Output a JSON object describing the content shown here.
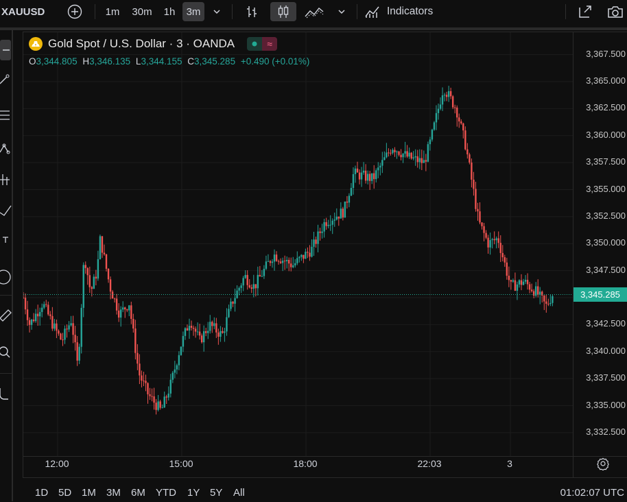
{
  "toolbar": {
    "symbol": "XAUUSD",
    "intervals": [
      "1m",
      "30m",
      "1h",
      "3m"
    ],
    "active_interval": "3m",
    "indicators_label": "Indicators"
  },
  "legend": {
    "title": "Gold Spot / U.S. Dollar · 3 · OANDA",
    "o_key": "O",
    "o_val": "3,344.805",
    "h_key": "H",
    "h_val": "3,346.135",
    "l_key": "L",
    "l_val": "3,344.155",
    "c_key": "C",
    "c_val": "3,345.285",
    "change": "+0.490 (+0.01%)",
    "pill_symbol": "≈"
  },
  "price_scale": {
    "ticks": [
      "3,367.500",
      "3,365.000",
      "3,362.500",
      "3,360.000",
      "3,357.500",
      "3,355.000",
      "3,352.500",
      "3,350.000",
      "3,347.500",
      "3,345.000",
      "3,342.500",
      "3,340.000",
      "3,337.500",
      "3,335.000",
      "3,332.500"
    ],
    "last_price": "3,345.285"
  },
  "time_axis": {
    "ticks": [
      "12:00",
      "15:00",
      "18:00",
      "22:03",
      "3"
    ]
  },
  "bottom_bar": {
    "ranges": [
      "1D",
      "5D",
      "1M",
      "3M",
      "6M",
      "YTD",
      "1Y",
      "5Y",
      "All"
    ],
    "clock": "01:02:07 UTC"
  },
  "colors": {
    "up": "#26a69a",
    "down": "#ef5350",
    "background": "#0f0f0f",
    "grid": "#1c1c1c",
    "last_price": "#22ab94"
  },
  "chart_data": {
    "type": "candlestick",
    "title": "Gold Spot / U.S. Dollar · 3 · OANDA",
    "ylim": [
      3331.5,
      3369
    ],
    "y_ticks": [
      3367.5,
      3365,
      3362.5,
      3360,
      3357.5,
      3355,
      3352.5,
      3350,
      3347.5,
      3345,
      3342.5,
      3340,
      3337.5,
      3335,
      3332.5
    ],
    "x_ticks": [
      "12:00",
      "15:00",
      "18:00",
      "22:03",
      "3"
    ],
    "last_close": 3345.285,
    "anchors": [
      [
        0.0,
        3345.0
      ],
      [
        0.01,
        3342.5
      ],
      [
        0.03,
        3344.5
      ],
      [
        0.05,
        3342.0
      ],
      [
        0.06,
        3341.0
      ],
      [
        0.075,
        3343.0
      ],
      [
        0.085,
        3338.5
      ],
      [
        0.095,
        3349.0
      ],
      [
        0.105,
        3345.5
      ],
      [
        0.115,
        3347.5
      ],
      [
        0.12,
        3350.5
      ],
      [
        0.135,
        3346.0
      ],
      [
        0.15,
        3343.5
      ],
      [
        0.165,
        3344.5
      ],
      [
        0.18,
        3338.0
      ],
      [
        0.195,
        3336.0
      ],
      [
        0.215,
        3334.5
      ],
      [
        0.23,
        3337.0
      ],
      [
        0.245,
        3340.5
      ],
      [
        0.26,
        3343.0
      ],
      [
        0.275,
        3341.0
      ],
      [
        0.29,
        3342.5
      ],
      [
        0.31,
        3341.5
      ],
      [
        0.325,
        3344.5
      ],
      [
        0.345,
        3347.0
      ],
      [
        0.36,
        3346.0
      ],
      [
        0.39,
        3349.0
      ],
      [
        0.42,
        3348.0
      ],
      [
        0.45,
        3349.5
      ],
      [
        0.47,
        3352.0
      ],
      [
        0.5,
        3353.0
      ],
      [
        0.515,
        3356.5
      ],
      [
        0.545,
        3356.0
      ],
      [
        0.575,
        3359.0
      ],
      [
        0.6,
        3358.0
      ],
      [
        0.625,
        3357.5
      ],
      [
        0.635,
        3359.5
      ],
      [
        0.655,
        3364.5
      ],
      [
        0.675,
        3362.5
      ],
      [
        0.69,
        3359.0
      ],
      [
        0.71,
        3352.0
      ],
      [
        0.725,
        3350.0
      ],
      [
        0.74,
        3350.5
      ],
      [
        0.76,
        3346.0
      ],
      [
        0.78,
        3346.5
      ],
      [
        0.8,
        3345.5
      ],
      [
        0.815,
        3344.2
      ],
      [
        0.825,
        3345.3
      ]
    ]
  }
}
